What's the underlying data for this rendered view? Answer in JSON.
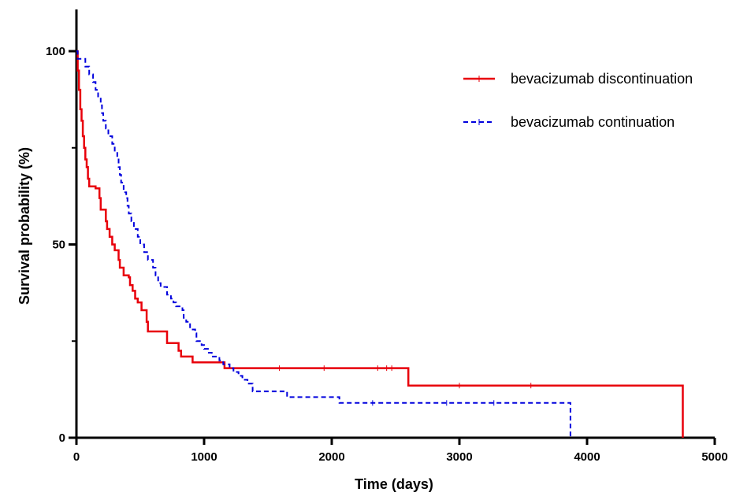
{
  "chart_data": {
    "type": "line",
    "xlabel": "Time (days)",
    "ylabel": "Survival probability (%)",
    "xlim": [
      0,
      5000
    ],
    "ylim": [
      0,
      100
    ],
    "x_ticks": [
      0,
      1000,
      2000,
      3000,
      4000,
      5000
    ],
    "y_ticks": [
      0,
      50,
      100
    ],
    "y_minor_ticks": [
      25,
      75
    ],
    "grid": false,
    "legend_position": "top-right",
    "series": [
      {
        "name": "bevacizumab discontinuation",
        "color": "#e8000b",
        "style": "solid",
        "points": [
          [
            0,
            100
          ],
          [
            10,
            95
          ],
          [
            20,
            90
          ],
          [
            30,
            85
          ],
          [
            40,
            82
          ],
          [
            50,
            78
          ],
          [
            60,
            75
          ],
          [
            70,
            72
          ],
          [
            80,
            70
          ],
          [
            90,
            67
          ],
          [
            100,
            65
          ],
          [
            150,
            64.5
          ],
          [
            180,
            62
          ],
          [
            190,
            59
          ],
          [
            220,
            59
          ],
          [
            230,
            56
          ],
          [
            240,
            54
          ],
          [
            260,
            52
          ],
          [
            280,
            50
          ],
          [
            300,
            48.5
          ],
          [
            330,
            46
          ],
          [
            340,
            44
          ],
          [
            370,
            42
          ],
          [
            400,
            42
          ],
          [
            410,
            41.5
          ],
          [
            420,
            39.5
          ],
          [
            440,
            38
          ],
          [
            460,
            36
          ],
          [
            480,
            35
          ],
          [
            500,
            35
          ],
          [
            510,
            33
          ],
          [
            550,
            30
          ],
          [
            560,
            27.5
          ],
          [
            700,
            27.5
          ],
          [
            710,
            24.5
          ],
          [
            790,
            24.5
          ],
          [
            800,
            22.5
          ],
          [
            820,
            21
          ],
          [
            900,
            21
          ],
          [
            910,
            19.5
          ],
          [
            1150,
            19.5
          ],
          [
            1160,
            18
          ],
          [
            2590,
            18
          ],
          [
            2600,
            13.5
          ],
          [
            4750,
            13.5
          ],
          [
            4750,
            0
          ]
        ],
        "censor_marks": [
          1590,
          1940,
          2360,
          2430,
          2470,
          3000,
          3560
        ]
      },
      {
        "name": "bevacizumab continuation",
        "color": "#0000dd",
        "style": "dashed",
        "points": [
          [
            0,
            100
          ],
          [
            10,
            98
          ],
          [
            60,
            98
          ],
          [
            70,
            96
          ],
          [
            100,
            94
          ],
          [
            130,
            92
          ],
          [
            150,
            90
          ],
          [
            170,
            88
          ],
          [
            190,
            86
          ],
          [
            200,
            84
          ],
          [
            210,
            82
          ],
          [
            230,
            80
          ],
          [
            250,
            78
          ],
          [
            280,
            76
          ],
          [
            300,
            74
          ],
          [
            320,
            72
          ],
          [
            330,
            70
          ],
          [
            340,
            68
          ],
          [
            350,
            66
          ],
          [
            370,
            63.5
          ],
          [
            390,
            62
          ],
          [
            400,
            60
          ],
          [
            410,
            58
          ],
          [
            430,
            56
          ],
          [
            450,
            54
          ],
          [
            480,
            52
          ],
          [
            500,
            50
          ],
          [
            530,
            48
          ],
          [
            560,
            46
          ],
          [
            600,
            44
          ],
          [
            620,
            42
          ],
          [
            640,
            40
          ],
          [
            660,
            39
          ],
          [
            700,
            39
          ],
          [
            710,
            37
          ],
          [
            740,
            36
          ],
          [
            760,
            35
          ],
          [
            780,
            34
          ],
          [
            830,
            33
          ],
          [
            840,
            31
          ],
          [
            860,
            30
          ],
          [
            890,
            28
          ],
          [
            930,
            27
          ],
          [
            940,
            25
          ],
          [
            980,
            24
          ],
          [
            1000,
            23
          ],
          [
            1030,
            22
          ],
          [
            1060,
            21
          ],
          [
            1090,
            21
          ],
          [
            1120,
            20
          ],
          [
            1150,
            19
          ],
          [
            1200,
            18
          ],
          [
            1230,
            17
          ],
          [
            1270,
            16
          ],
          [
            1300,
            15
          ],
          [
            1340,
            14
          ],
          [
            1380,
            12
          ],
          [
            1640,
            12
          ],
          [
            1650,
            10.5
          ],
          [
            2050,
            10.5
          ],
          [
            2060,
            9
          ],
          [
            3870,
            9
          ],
          [
            3870,
            0
          ]
        ],
        "censor_marks": [
          2320,
          2900,
          3270
        ]
      }
    ]
  }
}
